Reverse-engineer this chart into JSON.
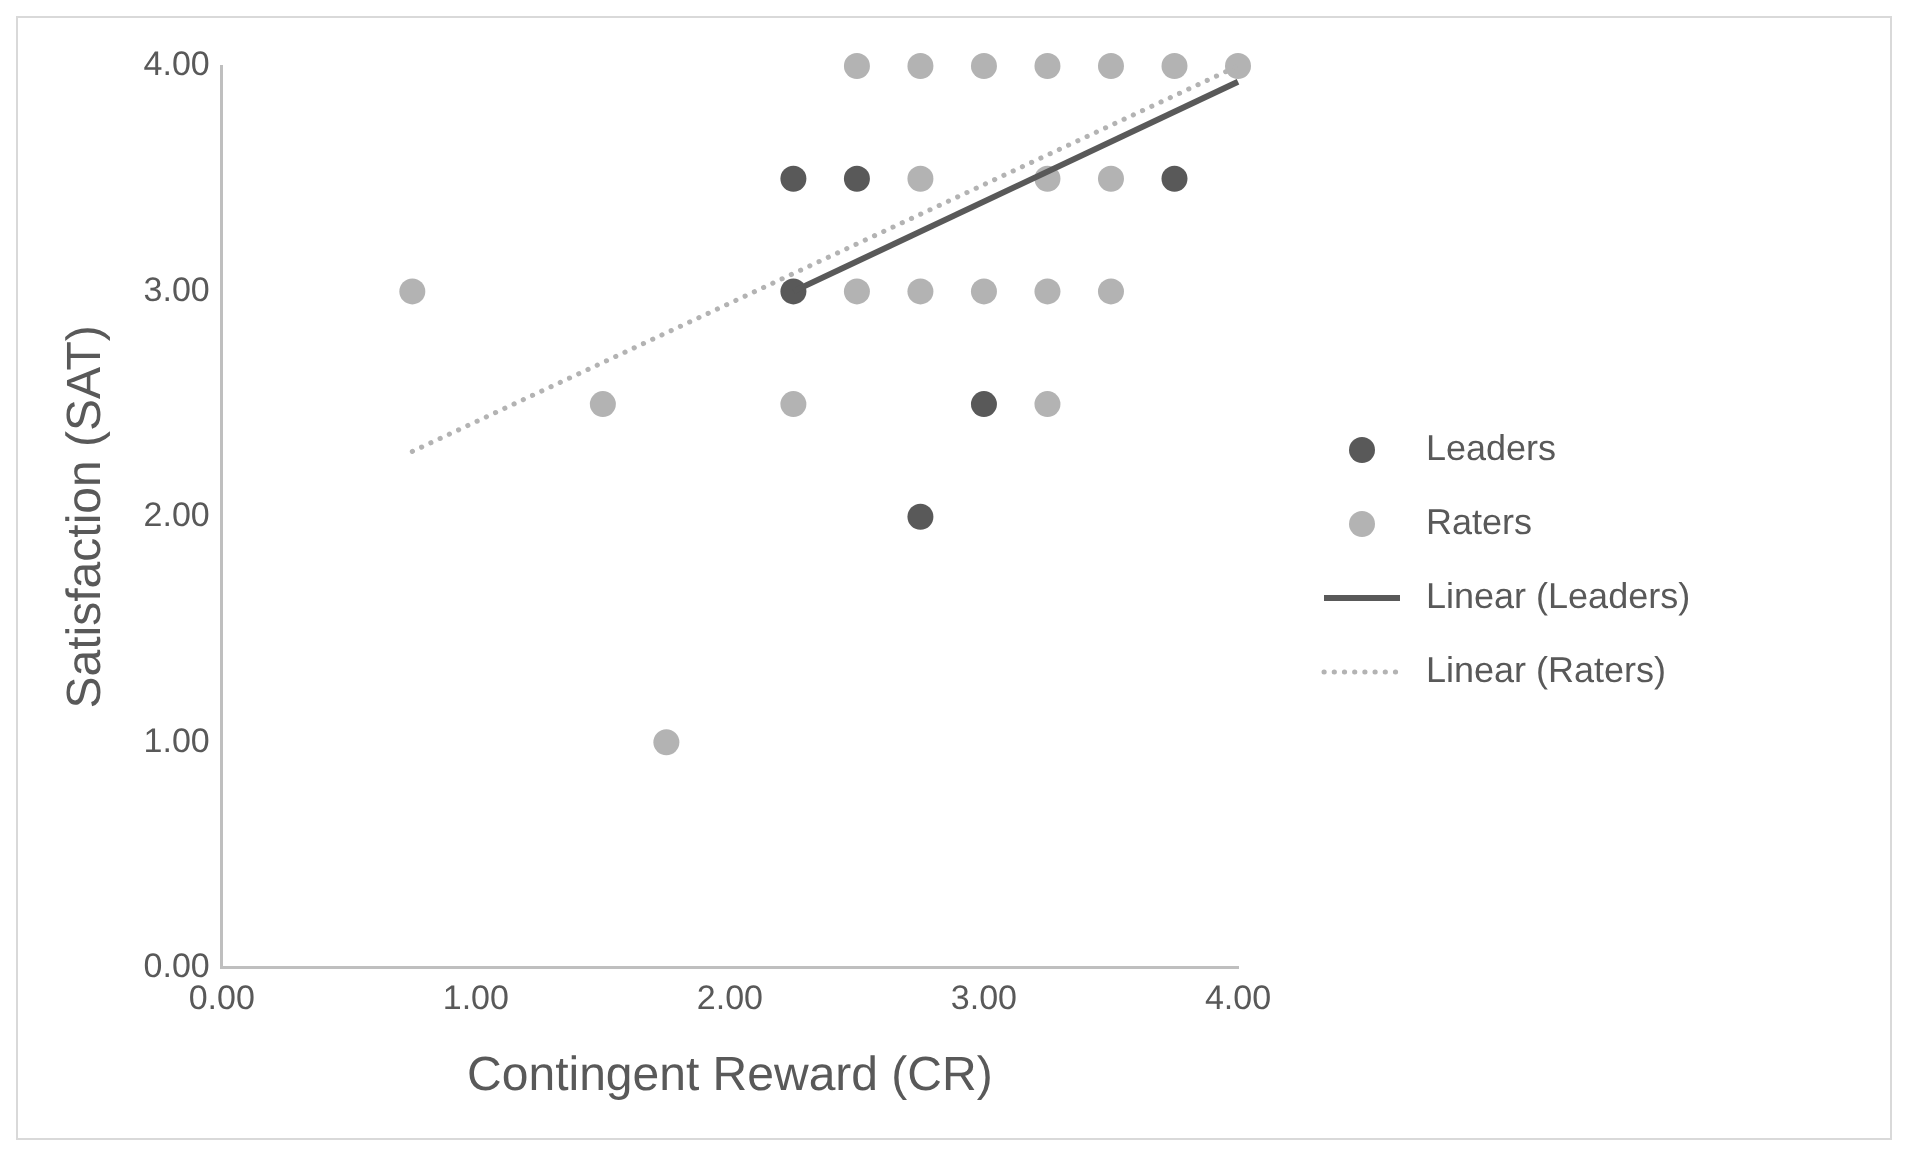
{
  "chart_data": {
    "type": "scatter",
    "xlabel": "Contingent Reward (CR)",
    "ylabel": "Satisfaction (SAT)",
    "xlim": [
      0,
      4
    ],
    "ylim": [
      0,
      4
    ],
    "xticks": [
      {
        "value": 0,
        "label": "0.00"
      },
      {
        "value": 1,
        "label": "1.00"
      },
      {
        "value": 2,
        "label": "2.00"
      },
      {
        "value": 3,
        "label": "3.00"
      },
      {
        "value": 4,
        "label": "4.00"
      }
    ],
    "yticks": [
      {
        "value": 0,
        "label": "0.00"
      },
      {
        "value": 1,
        "label": "1.00"
      },
      {
        "value": 2,
        "label": "2.00"
      },
      {
        "value": 3,
        "label": "3.00"
      },
      {
        "value": 4,
        "label": "4.00"
      }
    ],
    "grid": false,
    "legend": "right",
    "marker": "circle",
    "series": [
      {
        "name": "Leaders",
        "type": "scatter",
        "color": "#595959",
        "x": [
          2.25,
          2.5,
          3.75,
          2.25,
          3.0,
          2.75
        ],
        "values": [
          3.5,
          3.5,
          3.5,
          3.0,
          2.5,
          2.0
        ]
      },
      {
        "name": "Raters",
        "type": "scatter",
        "color": "#b3b3b3",
        "x": [
          2.5,
          2.75,
          3.0,
          3.25,
          3.5,
          3.75,
          4.0,
          2.75,
          3.25,
          3.5,
          0.75,
          2.5,
          2.75,
          3.0,
          3.25,
          3.5,
          1.5,
          2.25,
          3.25,
          1.75
        ],
        "values": [
          4,
          4,
          4,
          4,
          4,
          4,
          4,
          3.5,
          3.5,
          3.5,
          3,
          3,
          3,
          3,
          3,
          3,
          2.5,
          2.5,
          2.5,
          1
        ]
      },
      {
        "name": "Linear (Leaders)",
        "type": "line",
        "line_style": "solid",
        "marker": "none",
        "color": "#595959",
        "x": [
          2.25,
          4.0
        ],
        "values": [
          3.0,
          3.93
        ]
      },
      {
        "name": "Linear (Raters)",
        "type": "line",
        "line_style": "dotted",
        "marker": "none",
        "color": "#b3b3b3",
        "x": [
          0.75,
          4.0
        ],
        "values": [
          2.29,
          4.0
        ]
      }
    ]
  }
}
